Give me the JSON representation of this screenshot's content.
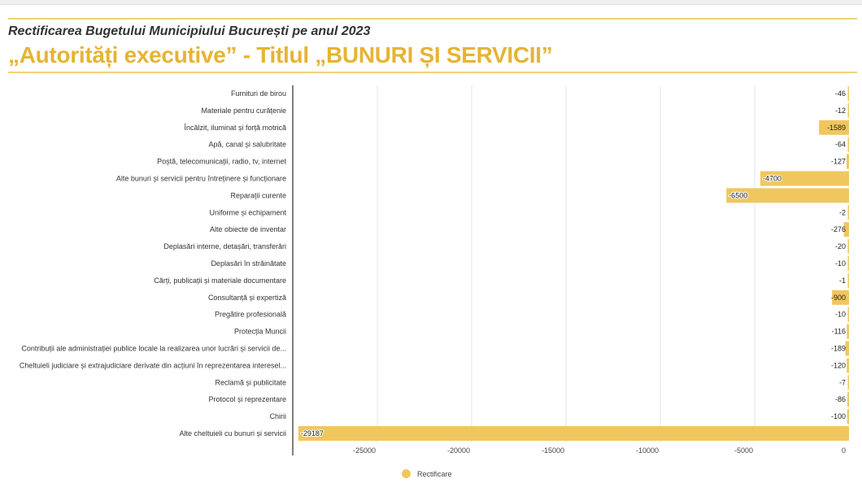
{
  "header": {
    "subtitle": "Rectificarea Bugetului Municipiului București pe anul 2023",
    "title": "„Autorități executive” - Titlul „BUNURI ȘI SERVICII”"
  },
  "chart_data": {
    "type": "bar",
    "orientation": "horizontal",
    "categories": [
      "Furnituri de birou",
      "Materiale pentru curățenie",
      "Încălzit, iluminat și forță motrică",
      "Apă, canal și salubritate",
      "Poștă, telecomunicații, radio, tv, internet",
      "Alte bunuri și servicii pentru întreținere și funcționare",
      "Reparații curente",
      "Uniforme și echipament",
      "Alte obiecte de inventar",
      "Deplasări interne, detașări, transferări",
      "Deplasări în străinătate",
      "Cărți, publicații și materiale documentare",
      "Consultanță și expertiză",
      "Pregătire profesională",
      "Protecția Muncii",
      "Contribuții ale administrației publice locale la realizarea unor lucrări și servicii de...",
      "Cheltuieli judiciare și extrajudiciare derivate din acțiuni în reprezentarea interesel...",
      "Reclamă și publicitate",
      "Protocol și reprezentare",
      "Chirii",
      "Alte cheltuieli cu bunuri și servicii"
    ],
    "series": [
      {
        "name": "Rectificare",
        "values": [
          -46,
          -12,
          -1589,
          -64,
          -127,
          -4700,
          -6500,
          -2,
          -276,
          -20,
          -10,
          -1,
          -900,
          -10,
          -116,
          -189,
          -120,
          -7,
          -86,
          -100,
          -29187
        ]
      }
    ],
    "xticks": [
      -25000,
      -20000,
      -15000,
      -10000,
      -5000,
      0
    ],
    "xlim": [
      -29187,
      0
    ],
    "grid": true,
    "legend": "bottom",
    "color": "#f0c75e"
  }
}
